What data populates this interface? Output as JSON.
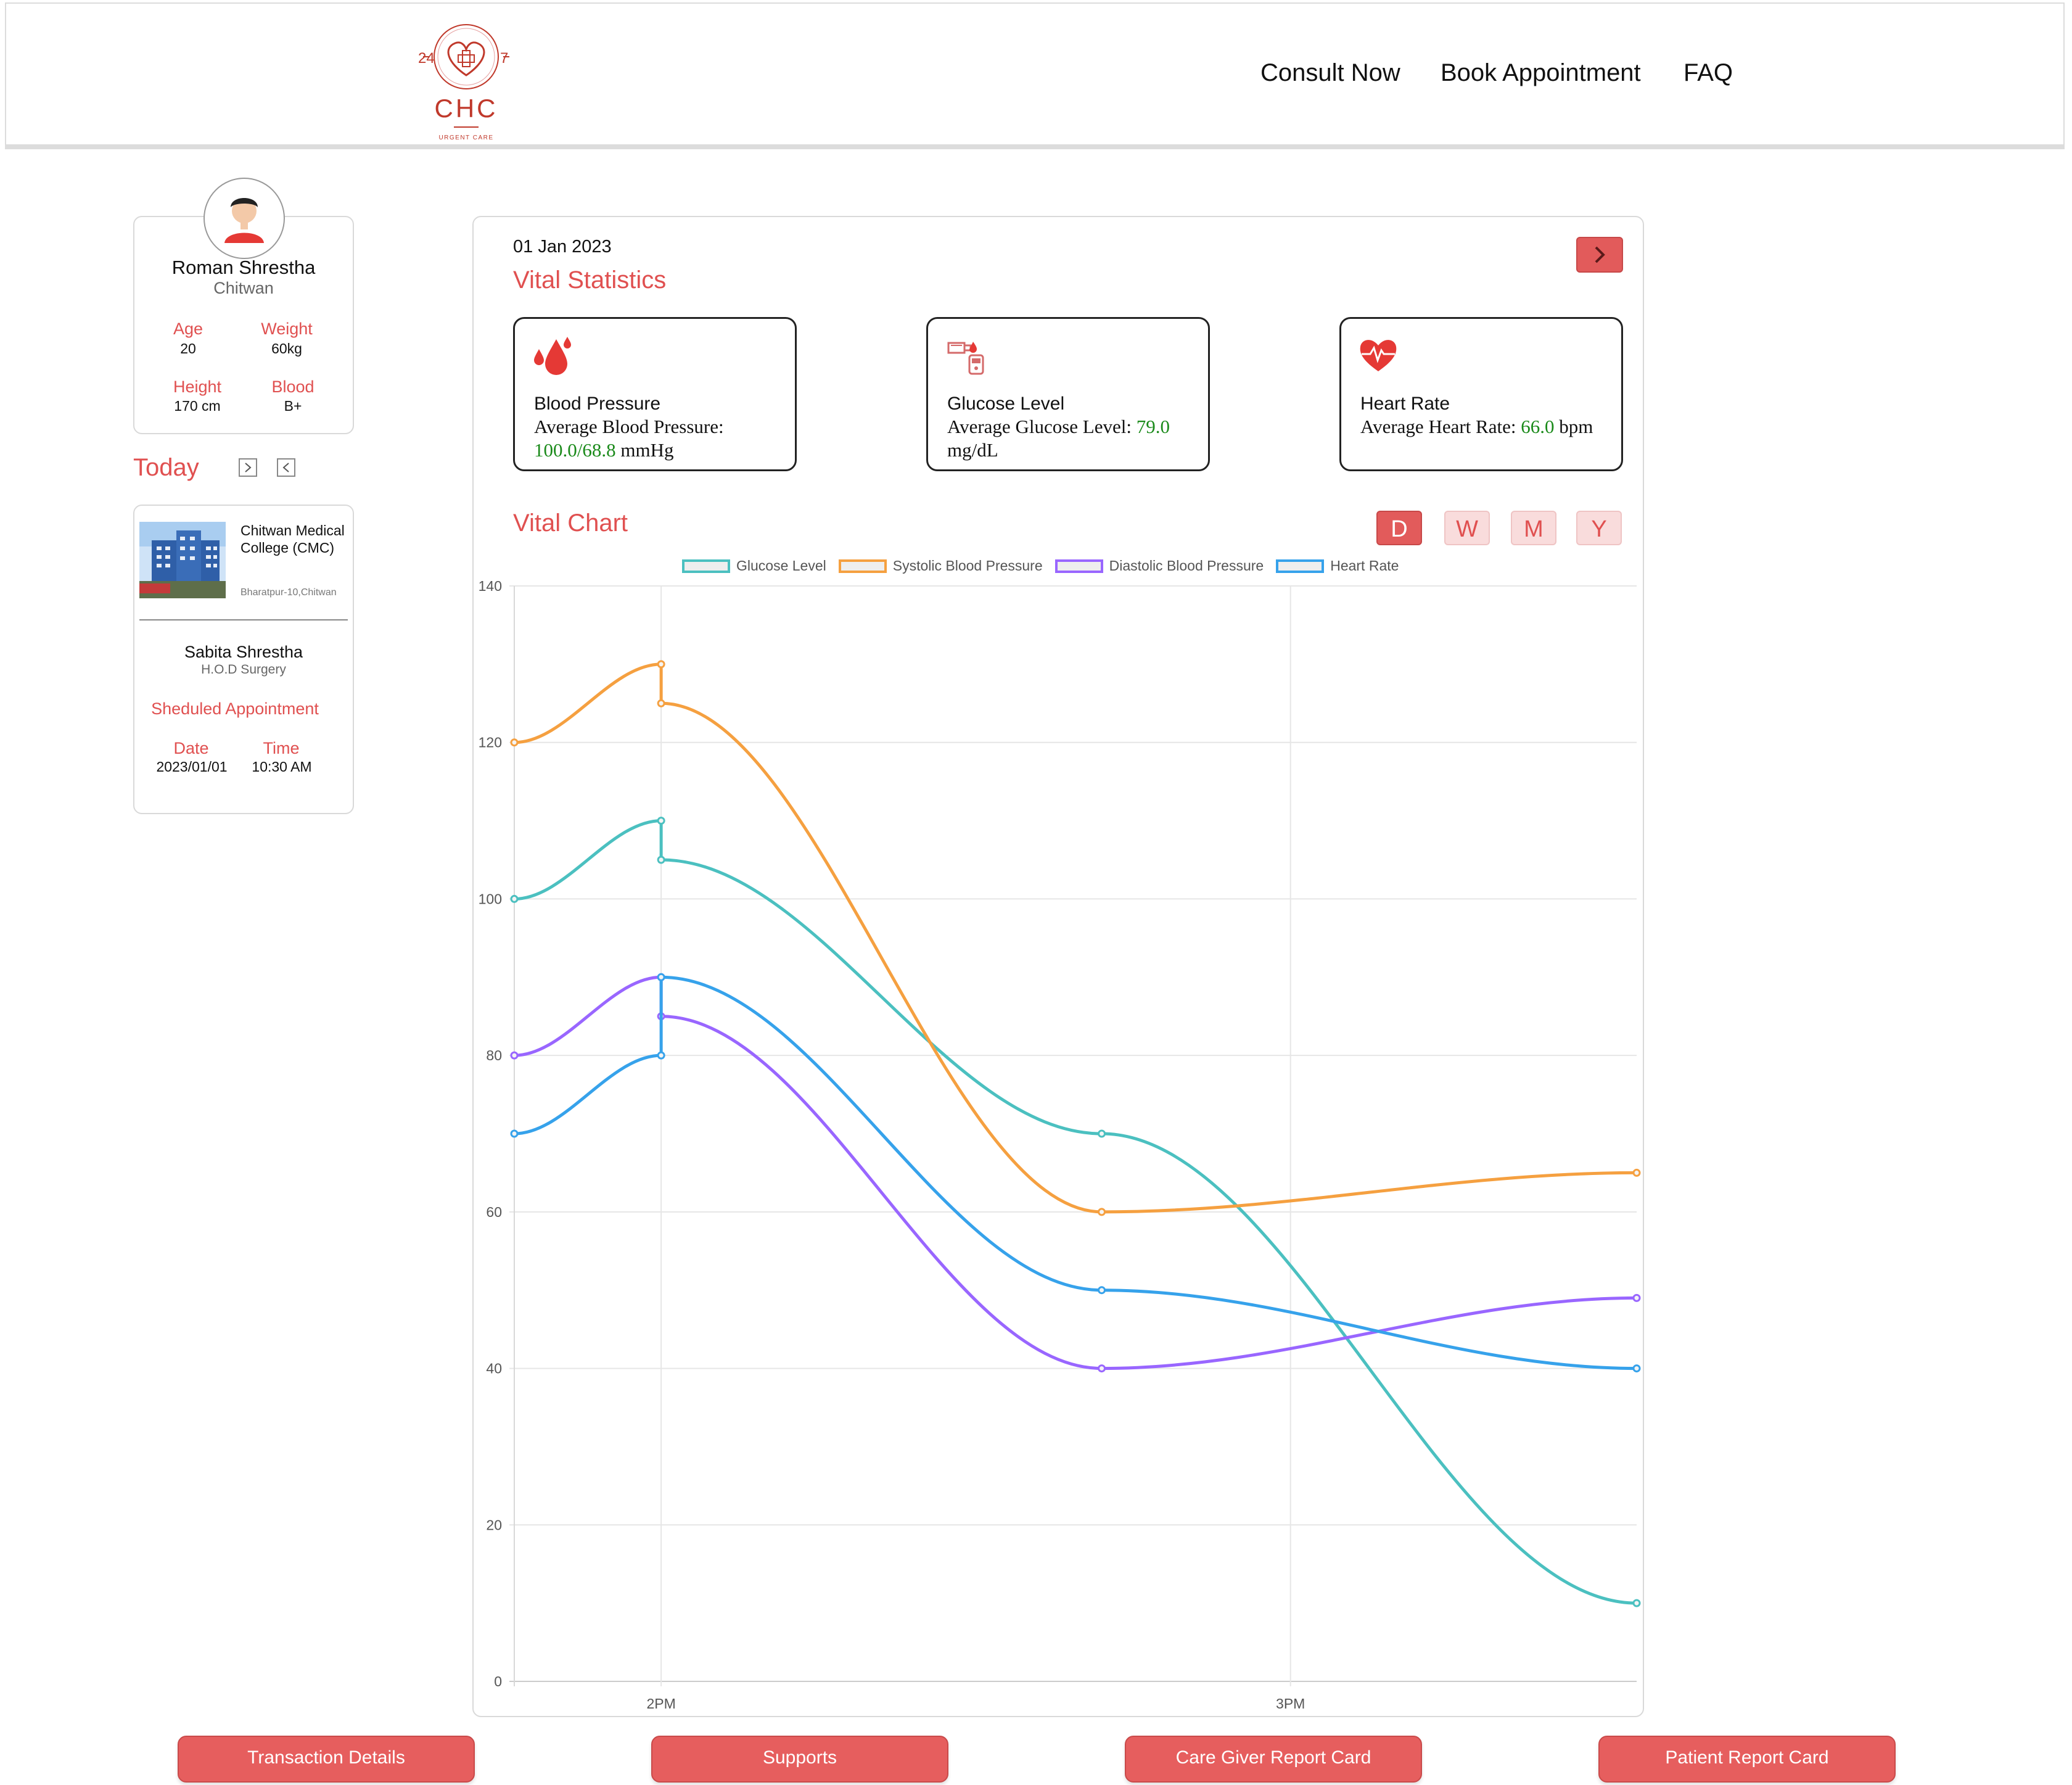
{
  "header": {
    "logo": {
      "top_left": "24",
      "top_right": "7",
      "name": "CHC",
      "tagline": "URGENT CARE"
    },
    "nav": [
      "Consult Now",
      "Book Appointment",
      "FAQ"
    ]
  },
  "profile": {
    "name": "Roman Shrestha",
    "location": "Chitwan",
    "stats": [
      {
        "label": "Age",
        "value": "20"
      },
      {
        "label": "Weight",
        "value": "60kg"
      },
      {
        "label": "Height",
        "value": "170 cm"
      },
      {
        "label": "Blood",
        "value": "B+"
      }
    ]
  },
  "today": {
    "title": "Today"
  },
  "appointment": {
    "hospital_name": "Chitwan Medical College (CMC)",
    "hospital_address": "Bharatpur-10,Chitwan",
    "doctor_name": "Sabita Shrestha",
    "doctor_title": "H.O.D Surgery",
    "section_title": "Sheduled Appointment",
    "date_label": "Date",
    "date_value": "2023/01/01",
    "time_label": "Time",
    "time_value": "10:30 AM"
  },
  "vitals": {
    "date": "01 Jan 2023",
    "title": "Vital Statistics",
    "cards": [
      {
        "title": "Blood Pressure",
        "prefix": "Average Blood Pressure: ",
        "value": "100.0/68.8",
        "suffix": " mmHg",
        "icon": "blood-drops-icon"
      },
      {
        "title": "Glucose Level",
        "prefix": "Average Glucose Level: ",
        "value": "79.0",
        "suffix": " mg/dL",
        "icon": "glucose-meter-icon"
      },
      {
        "title": "Heart Rate",
        "prefix": "Average Heart Rate: ",
        "value": "66.0",
        "suffix": " bpm",
        "icon": "heart-pulse-icon"
      }
    ],
    "chart_title": "Vital Chart",
    "ranges": [
      "D",
      "W",
      "M",
      "Y"
    ],
    "active_range": "D"
  },
  "colors": {
    "accent": "#e05050",
    "glucose": "#4bc0c0",
    "systolic": "#f5a040",
    "diastolic": "#9966ff",
    "heart": "#36a2eb"
  },
  "chart_data": {
    "type": "line",
    "x_tick_labels": [
      "2PM",
      "3PM"
    ],
    "ylim": [
      0,
      140
    ],
    "y_ticks": [
      0,
      20,
      40,
      60,
      80,
      100,
      120,
      140
    ],
    "grid": true,
    "legend": "top",
    "series": [
      {
        "name": "Glucose Level",
        "color": "#4bc0c0",
        "points": [
          [
            "13:46",
            100
          ],
          [
            "14:00",
            110
          ],
          [
            "14:00",
            105
          ],
          [
            "14:42",
            70
          ],
          [
            "15:33",
            10
          ]
        ]
      },
      {
        "name": "Systolic Blood Pressure",
        "color": "#f5a040",
        "points": [
          [
            "13:46",
            120
          ],
          [
            "14:00",
            130
          ],
          [
            "14:00",
            125
          ],
          [
            "14:42",
            60
          ],
          [
            "15:33",
            65
          ]
        ]
      },
      {
        "name": "Diastolic Blood Pressure",
        "color": "#9966ff",
        "points": [
          [
            "13:46",
            80
          ],
          [
            "14:00",
            90
          ],
          [
            "14:00",
            85
          ],
          [
            "14:42",
            40
          ],
          [
            "15:33",
            49
          ]
        ]
      },
      {
        "name": "Heart Rate",
        "color": "#36a2eb",
        "points": [
          [
            "13:46",
            70
          ],
          [
            "14:00",
            80
          ],
          [
            "14:00",
            90
          ],
          [
            "14:42",
            50
          ],
          [
            "15:33",
            40
          ]
        ]
      }
    ]
  },
  "footer_buttons": [
    "Transaction Details",
    "Supports",
    "Care Giver Report Card",
    "Patient Report Card"
  ]
}
